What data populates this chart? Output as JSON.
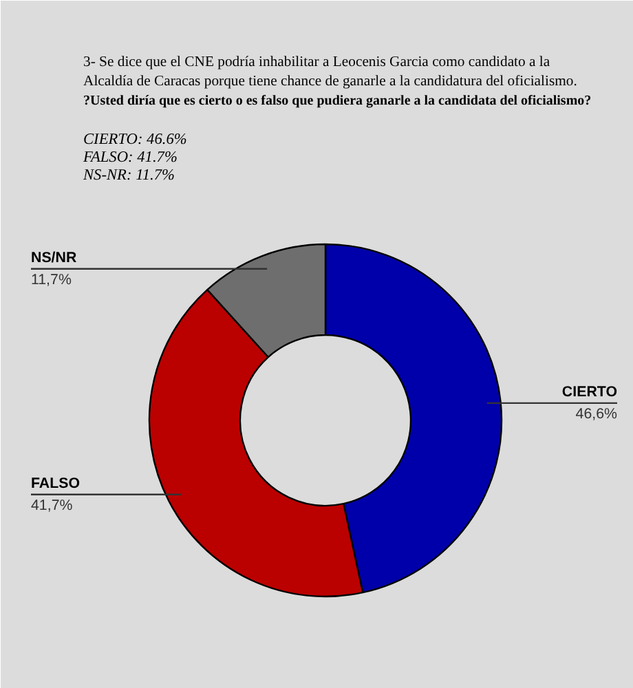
{
  "chart_data": {
    "type": "donut",
    "title": "3- Se dice que el CNE podría inhabilitar a Leocenis Garcia como candidato a la Alcaldía de Caracas porque tiene chance de ganarle a la candidatura del oficialismo.",
    "subtitle": "?Usted diría que es cierto o es falso que pudiera ganarle a la candidata del oficialismo?",
    "annotations": [
      "CIERTO: 46.6%",
      "FALSO: 41.7%",
      "NS-NR: 11.7%"
    ],
    "categories": [
      "CIERTO",
      "FALSO",
      "NS/NR"
    ],
    "values": [
      46.6,
      41.7,
      11.7
    ],
    "value_labels": [
      "46,6%",
      "41,7%",
      "11,7%"
    ],
    "colors": [
      "#0000aa",
      "#bb0000",
      "#6e6e6e"
    ]
  }
}
